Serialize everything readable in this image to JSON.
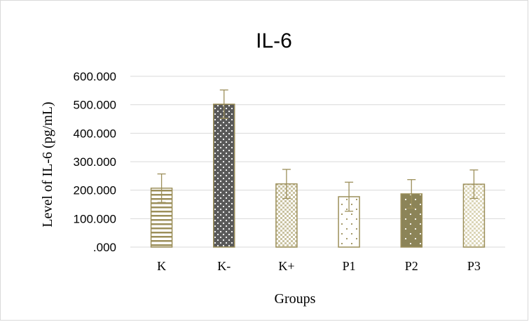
{
  "chart_data": {
    "type": "bar",
    "title": "IL-6",
    "xlabel": "Groups",
    "ylabel": "Level of IL-6 (pg/mL)",
    "categories": [
      "K",
      "K-",
      "K+",
      "P1",
      "P2",
      "P3"
    ],
    "values": [
      207,
      502,
      222,
      177,
      187,
      221
    ],
    "error": [
      50,
      50,
      51,
      51,
      50,
      50
    ],
    "ylim": [
      0,
      600
    ],
    "yticks": [
      {
        "value": 0,
        "label": ".000"
      },
      {
        "value": 100,
        "label": "100.000"
      },
      {
        "value": 200,
        "label": "200.000"
      },
      {
        "value": 300,
        "label": "300.000"
      },
      {
        "value": 400,
        "label": "400.000"
      },
      {
        "value": 500,
        "label": "500.000"
      },
      {
        "value": 600,
        "label": "600.000"
      }
    ],
    "grid": true,
    "legend": "none",
    "colors": {
      "bar_edge": "#9c8f5a",
      "bar_dark": "#595959",
      "bar_olive": "#8c8458",
      "gridline": "#d9d9d9",
      "error_bar": "#9c8f5a"
    }
  }
}
